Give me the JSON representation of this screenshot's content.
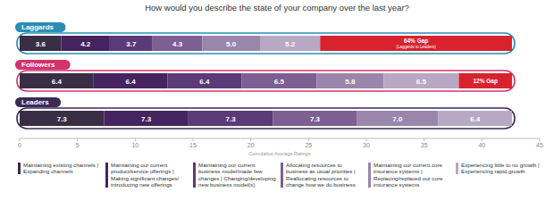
{
  "chart_data": {
    "type": "bar",
    "orientation": "horizontal",
    "stacked": true,
    "data_labels": true,
    "grid": false,
    "legend": "bottom",
    "title": "How would you describe the state of your company over the last year?",
    "x_label": "Cumulative Average Ratings",
    "categories": [
      "Laggards",
      "Followers",
      "Leaders"
    ],
    "series": [
      {
        "name": "Maintaining existing channels | Expanding channels",
        "color": "#3a2e45",
        "values": [
          3.6,
          6.4,
          7.3
        ]
      },
      {
        "name": "Maintaining our current product/service offerings | Making significant changes/ introducing new offerings",
        "color": "#45245f",
        "values": [
          4.2,
          6.4,
          7.3
        ]
      },
      {
        "name": "Maintaining our current business model/made few changes | Changing/developing new business model(s)",
        "color": "#5b3a78",
        "values": [
          3.7,
          6.4,
          7.3
        ]
      },
      {
        "name": "Allocating resources to business as usual priorities | Reallocating resources to change how we do business",
        "color": "#7d5f93",
        "values": [
          4.3,
          6.5,
          7.3
        ]
      },
      {
        "name": "Maintaining our current core insurance systems | Replacing/replaced our core insurance systems",
        "color": "#9b86ab",
        "values": [
          5.0,
          5.8,
          7.0
        ],
        "value_labels": [
          "5.0",
          "5.8",
          "7.0"
        ]
      },
      {
        "name": "Experiencing little to no growth | Experiencing rapid growth",
        "color": "#b8a8c4",
        "values": [
          5.2,
          6.5,
          6.4
        ]
      }
    ],
    "xlim": [
      0,
      45
    ],
    "xticks": [
      0,
      5,
      10,
      15,
      20,
      25,
      30,
      35,
      40,
      45
    ],
    "annotations": [
      {
        "category": "Laggards",
        "value": 16.6,
        "text": "64% Gap",
        "subtext": "(Laggards to Leaders)"
      },
      {
        "category": "Followers",
        "value": 4.6,
        "text": "12% Gap"
      }
    ]
  }
}
